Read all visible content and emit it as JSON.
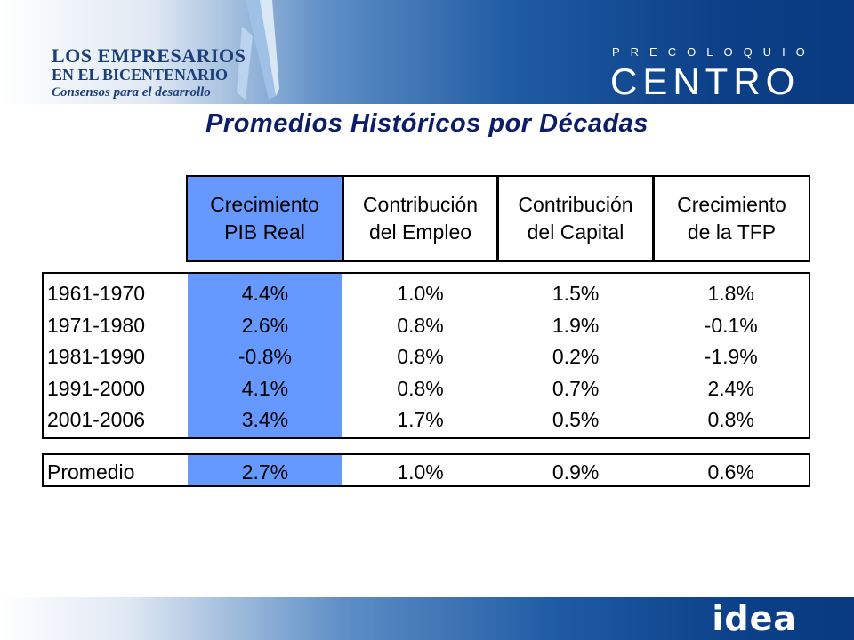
{
  "header": {
    "logo_left": {
      "line1": "LOS EMPRESARIOS",
      "line2": "EN EL BICENTENARIO",
      "tagline": "Consensos para el desarrollo"
    },
    "logo_right": {
      "sub": "PRECOLOQUIO",
      "main": "CENTRO"
    }
  },
  "title": "Promedios Históricos por Décadas",
  "table": {
    "columns": [
      "Crecimiento\nPIB Real",
      "Contribución\ndel Empleo",
      "Contribución\ndel Capital",
      "Crecimiento\nde la TFP"
    ],
    "rows": [
      {
        "period": "1961-1970",
        "values": [
          "4.4%",
          "1.0%",
          "1.5%",
          "1.8%"
        ]
      },
      {
        "period": "1971-1980",
        "values": [
          "2.6%",
          "0.8%",
          "1.9%",
          "-0.1%"
        ]
      },
      {
        "period": "1981-1990",
        "values": [
          "-0.8%",
          "0.8%",
          "0.2%",
          "-1.9%"
        ]
      },
      {
        "period": "1991-2000",
        "values": [
          "4.1%",
          "0.8%",
          "0.7%",
          "2.4%"
        ]
      },
      {
        "period": "2001-2006",
        "values": [
          "3.4%",
          "1.7%",
          "0.5%",
          "0.8%"
        ]
      }
    ],
    "average": {
      "period": "Promedio",
      "values": [
        "2.7%",
        "1.0%",
        "0.9%",
        "0.6%"
      ]
    }
  },
  "footer": {
    "brand": "idea"
  },
  "colors": {
    "highlight": "#6699ff",
    "title": "#0d1e68",
    "brand_blue": "#0b3f87"
  }
}
